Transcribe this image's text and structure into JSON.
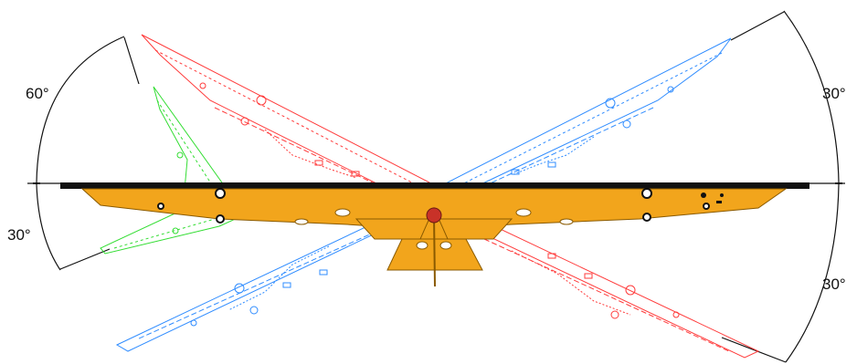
{
  "angle_labels": {
    "upper_left": "60°",
    "lower_left": "30°",
    "upper_right": "30°",
    "lower_right": "30°"
  },
  "colors": {
    "body": "#f2a51c",
    "body_stroke": "#8a5a00",
    "red_position": "#ff3b3b",
    "blue_position": "#2f8cff",
    "green_position": "#33dd33",
    "dimension_line": "#111111",
    "hitch_center": "#c83228"
  }
}
